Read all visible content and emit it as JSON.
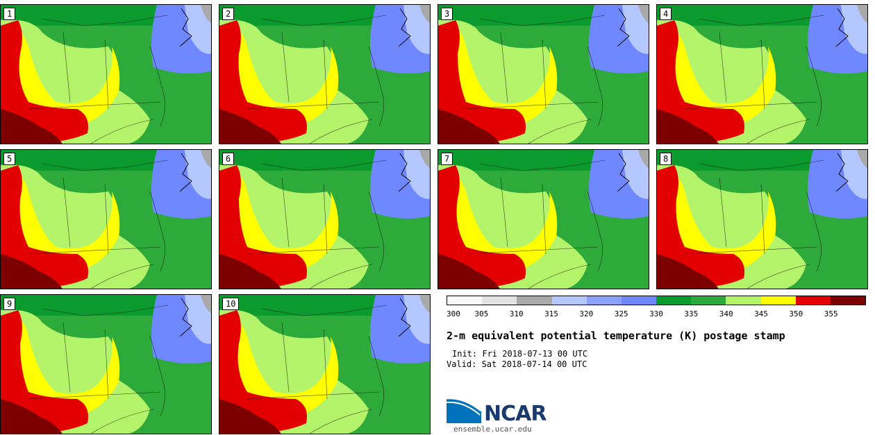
{
  "panels": [
    {
      "label": "1"
    },
    {
      "label": "2"
    },
    {
      "label": "3"
    },
    {
      "label": "4"
    },
    {
      "label": "5"
    },
    {
      "label": "6"
    },
    {
      "label": "7"
    },
    {
      "label": "8"
    },
    {
      "label": "9"
    },
    {
      "label": "10"
    }
  ],
  "colorbar": {
    "colors": [
      "#f7f7f7",
      "#e3e3e3",
      "#a9a9a9",
      "#b4c8ff",
      "#8ca0ff",
      "#7088ff",
      "#0a9a2e",
      "#2eaa3a",
      "#b4f46a",
      "#ffff00",
      "#e30000",
      "#7d0000"
    ],
    "labels": [
      "300",
      "305",
      "310",
      "315",
      "320",
      "325",
      "330",
      "335",
      "340",
      "345",
      "350",
      "355"
    ]
  },
  "title": "2-m equivalent potential temperature (K) postage stamp",
  "init": "Init: Fri 2018-07-13 00 UTC",
  "valid": "Valid: Sat 2018-07-14 00 UTC",
  "logo": {
    "text": "NCAR",
    "site": "ensemble.ucar.edu",
    "primary_color": "#0072bc",
    "secondary_color": "#1a3a6e"
  }
}
